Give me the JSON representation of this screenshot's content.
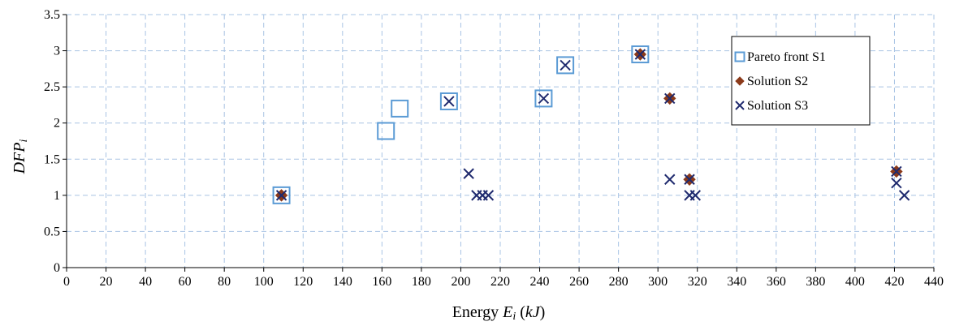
{
  "chart_data": {
    "type": "scatter",
    "xlabel": "Energy Ei (kJ)",
    "xlabel_parts": {
      "prefix": "Energy ",
      "var": "E",
      "sub": "i",
      "unit_open": " (",
      "unit": "kJ",
      "unit_close": ")"
    },
    "ylabel": "DFPi",
    "ylabel_parts": {
      "var": "DFP",
      "sub": "i"
    },
    "xlim": [
      0,
      440
    ],
    "ylim": [
      0,
      3.5
    ],
    "x_ticks": [
      0,
      20,
      40,
      60,
      80,
      100,
      120,
      140,
      160,
      180,
      200,
      220,
      240,
      260,
      280,
      300,
      320,
      340,
      360,
      380,
      400,
      420,
      440
    ],
    "y_ticks": [
      0,
      0.5,
      1,
      1.5,
      2,
      2.5,
      3,
      3.5
    ],
    "x_tick_labels": [
      "0",
      "20",
      "40",
      "60",
      "80",
      "100",
      "120",
      "140",
      "160",
      "180",
      "200",
      "220",
      "240",
      "260",
      "280",
      "300",
      "320",
      "340",
      "360",
      "380",
      "400",
      "420",
      "440"
    ],
    "y_tick_labels": [
      "0",
      "0.5",
      "1",
      "1.5",
      "2",
      "2.5",
      "3",
      "3.5"
    ],
    "grid": true,
    "legend_position": "top-right",
    "series": [
      {
        "name": "Pareto front S1",
        "marker": "square",
        "color": "#5b9bd5",
        "points": [
          [
            109,
            1.0
          ],
          [
            162,
            1.89
          ],
          [
            169,
            2.2
          ],
          [
            194,
            2.3
          ],
          [
            242,
            2.34
          ],
          [
            253,
            2.8
          ],
          [
            291,
            2.95
          ]
        ]
      },
      {
        "name": "Solution S2",
        "marker": "diamond",
        "color": "#8b3a1a",
        "points": [
          [
            109,
            1.0
          ],
          [
            291,
            2.95
          ],
          [
            306,
            2.34
          ],
          [
            316,
            1.22
          ],
          [
            421,
            1.33
          ]
        ]
      },
      {
        "name": "Solution S3",
        "marker": "x",
        "color": "#1f2a6e",
        "points": [
          [
            109,
            1.0
          ],
          [
            194,
            2.3
          ],
          [
            204,
            1.3
          ],
          [
            208,
            1.0
          ],
          [
            211,
            1.0
          ],
          [
            214,
            1.0
          ],
          [
            242,
            2.34
          ],
          [
            253,
            2.8
          ],
          [
            291,
            2.95
          ],
          [
            306,
            2.34
          ],
          [
            306,
            1.22
          ],
          [
            316,
            1.22
          ],
          [
            316,
            1.0
          ],
          [
            319,
            1.0
          ],
          [
            421,
            1.33
          ],
          [
            421,
            1.17
          ],
          [
            425,
            1.0
          ]
        ]
      }
    ]
  }
}
